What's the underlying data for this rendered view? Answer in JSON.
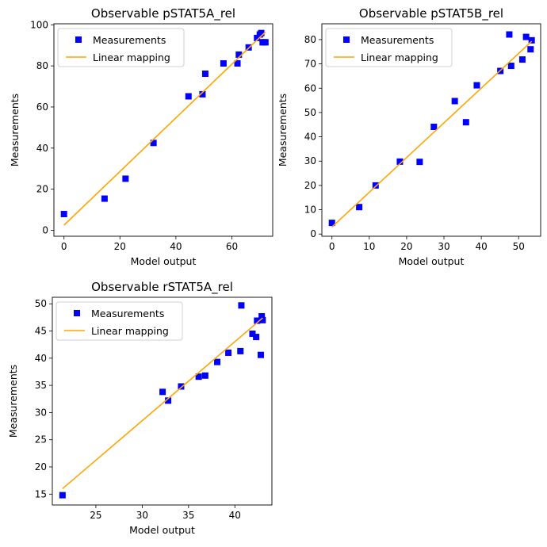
{
  "chart_data": [
    {
      "type": "scatter",
      "title": "Observable pSTAT5A_rel",
      "xlabel": "Model output",
      "ylabel": "Measurements",
      "xlim": [
        -3.6,
        74.6
      ],
      "ylim": [
        -2.9,
        100.5
      ],
      "xticks": [
        0,
        20,
        40,
        60
      ],
      "yticks": [
        0,
        20,
        40,
        60,
        80,
        100
      ],
      "grid": false,
      "legend": "upper left",
      "series": [
        {
          "name": "Measurements",
          "marker": "square",
          "color": "#0000ff",
          "x": [
            0,
            14.5,
            22,
            32,
            44.5,
            49.5,
            50.5,
            57,
            62,
            62.5,
            66,
            69,
            70,
            70.5,
            71,
            71.5,
            72
          ],
          "y": [
            7.9,
            15.4,
            25.1,
            42.5,
            65.2,
            66.2,
            76.2,
            81.2,
            81.2,
            85.5,
            89,
            93.6,
            95.3,
            96,
            91.5,
            91.5,
            91.5
          ]
        },
        {
          "name": "Linear mapping",
          "style": "line",
          "color": "#ffa500",
          "x": [
            0,
            72
          ],
          "y": [
            2.5,
            96.5
          ]
        }
      ]
    },
    {
      "type": "scatter",
      "title": "Observable pSTAT5B_rel",
      "xlabel": "Model output",
      "ylabel": "Measurements",
      "xlim": [
        -2.7,
        55.9
      ],
      "ylim": [
        -0.9,
        86.5
      ],
      "xticks": [
        0,
        10,
        20,
        30,
        40,
        50
      ],
      "yticks": [
        0,
        10,
        20,
        30,
        40,
        50,
        60,
        70,
        80
      ],
      "grid": false,
      "legend": "upper left",
      "series": [
        {
          "name": "Measurements",
          "marker": "square",
          "color": "#0000ff",
          "x": [
            0,
            7.3,
            11.7,
            18.2,
            23.5,
            27.3,
            32.9,
            35.9,
            38.8,
            45.1,
            47.5,
            48,
            51,
            52,
            53.2,
            53.5
          ],
          "y": [
            4.6,
            11.1,
            20,
            29.8,
            29.7,
            44.1,
            54.7,
            46,
            61.2,
            67.1,
            82.1,
            69.2,
            71.8,
            81.1,
            76,
            79.7
          ]
        },
        {
          "name": "Linear mapping",
          "style": "line",
          "color": "#ffa500",
          "x": [
            0,
            53.5
          ],
          "y": [
            2.9,
            79.3
          ]
        }
      ]
    },
    {
      "type": "scatter",
      "title": "Observable rSTAT5A_rel",
      "xlabel": "Model output",
      "ylabel": "Measurements",
      "xlim": [
        20.3,
        44.0
      ],
      "ylim": [
        13.0,
        51.2
      ],
      "xticks": [
        25,
        30,
        35,
        40
      ],
      "yticks": [
        15,
        20,
        25,
        30,
        35,
        40,
        45,
        50
      ],
      "grid": false,
      "legend": "upper left",
      "series": [
        {
          "name": "Measurements",
          "marker": "square",
          "color": "#0000ff",
          "x": [
            21.4,
            32.2,
            32.8,
            34.2,
            36.1,
            36.8,
            38.1,
            39.3,
            40.6,
            40.7,
            41.9,
            42.3,
            42.4,
            42.8,
            42.9,
            43.0
          ],
          "y": [
            14.8,
            33.8,
            32.2,
            34.8,
            36.6,
            36.8,
            39.3,
            41.0,
            41.3,
            49.7,
            44.5,
            43.9,
            46.9,
            40.6,
            47.7,
            47.0
          ]
        },
        {
          "name": "Linear mapping",
          "style": "line",
          "color": "#ffa500",
          "x": [
            21.4,
            43.0
          ],
          "y": [
            16.0,
            47.4
          ]
        }
      ]
    }
  ]
}
